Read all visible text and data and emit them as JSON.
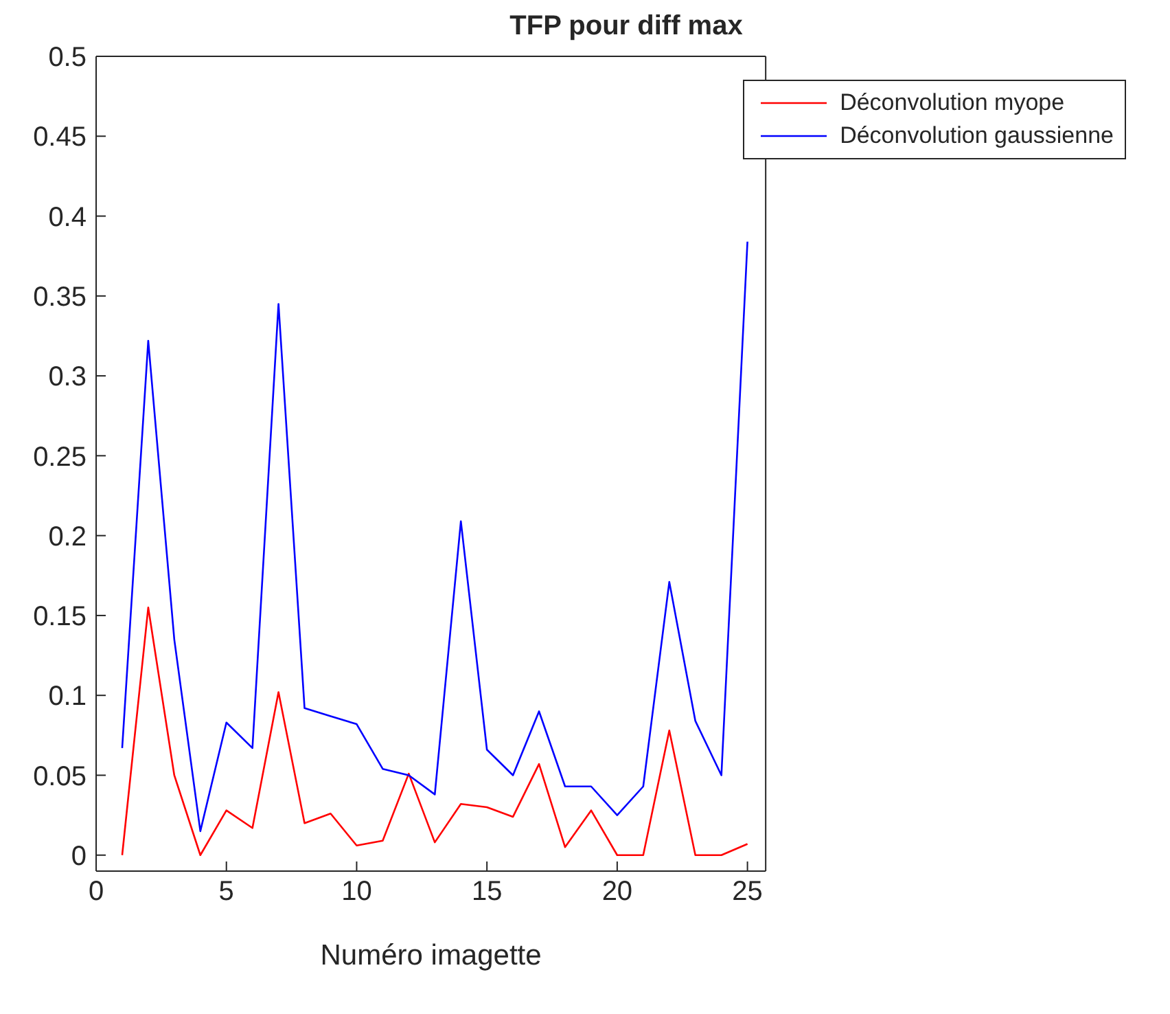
{
  "chart_data": {
    "type": "line",
    "title": "TFP pour diff max",
    "xlabel": "Numéro imagette",
    "x": [
      1,
      2,
      3,
      4,
      5,
      6,
      7,
      8,
      9,
      10,
      11,
      12,
      13,
      14,
      15,
      16,
      17,
      18,
      19,
      20,
      21,
      22,
      23,
      24,
      25
    ],
    "series": [
      {
        "name": "Déconvolution myope",
        "color": "#ff0000",
        "values": [
          0,
          0.155,
          0.05,
          0,
          0.028,
          0.017,
          0.102,
          0.02,
          0.026,
          0.006,
          0.009,
          0.051,
          0.008,
          0.032,
          0.03,
          0.024,
          0.057,
          0.005,
          0.028,
          0,
          0,
          0.078,
          0,
          0,
          0.007
        ]
      },
      {
        "name": "Déconvolution gaussienne",
        "color": "#0000ff",
        "values": [
          0.067,
          0.322,
          0.135,
          0.015,
          0.083,
          0.067,
          0.345,
          0.092,
          0.087,
          0.082,
          0.054,
          0.05,
          0.038,
          0.209,
          0.066,
          0.05,
          0.09,
          0.043,
          0.043,
          0.025,
          0.043,
          0.171,
          0.084,
          0.05,
          0.384
        ]
      }
    ],
    "xlim": [
      0,
      25.7
    ],
    "xticks": [
      0,
      5,
      10,
      15,
      20,
      25
    ],
    "ylim": [
      -0.01,
      0.5
    ],
    "yticks": [
      0,
      0.05,
      0.1,
      0.15,
      0.2,
      0.25,
      0.3,
      0.35,
      0.4,
      0.45,
      0.5
    ],
    "grid": false,
    "legend": "top right",
    "marker": "none",
    "line_style": "solid"
  }
}
